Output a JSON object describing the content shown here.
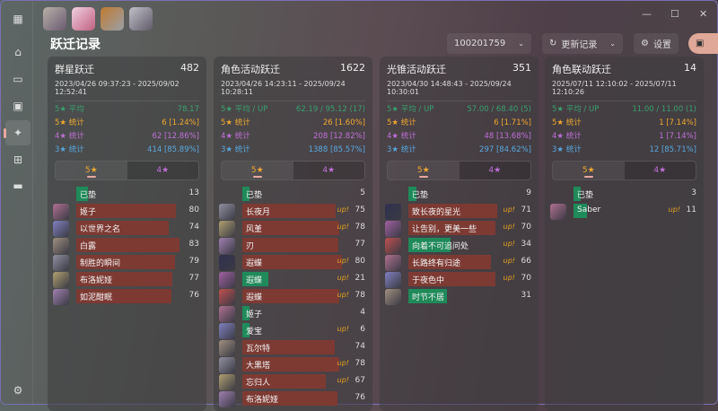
{
  "app": {
    "page_title": "跃迁记录",
    "uid": "100201759",
    "refresh_label": "更新记录",
    "settings_label": "设置"
  },
  "colors": {
    "five": "#f0a830",
    "four": "#c070d8",
    "three": "#5aa8e0",
    "avg": "#3aa070",
    "bar_red": "#7d3a33",
    "bar_green": "#1f8a5a"
  },
  "sidebar": [
    "grid-icon",
    "home-icon",
    "gamepad-icon",
    "image-icon",
    "sparkle-icon",
    "gift-icon",
    "card-icon",
    "settings-icon"
  ],
  "cards": [
    {
      "name": "群星跃迁",
      "total": "482",
      "range": "2023/04/26 09:37:23 - 2025/09/02 12:52:41",
      "avg_label": "5★ 平均",
      "avg": "78.17",
      "s5_label": "5★ 统计",
      "s5": "6 [1.24%]",
      "s4_label": "4★ 统计",
      "s4": "62 [12.86%]",
      "s3_label": "3★ 统计",
      "s3": "414 [85.89%]",
      "tab5": "5★",
      "tab4": "4★",
      "rows": [
        {
          "name": "已垫",
          "n": 13,
          "up": false,
          "g": true,
          "pity": true
        },
        {
          "name": "姬子",
          "n": 80
        },
        {
          "name": "以世界之名",
          "n": 74
        },
        {
          "name": "白露",
          "n": 83
        },
        {
          "name": "制胜的瞬间",
          "n": 79
        },
        {
          "name": "布洛妮娅",
          "n": 77
        },
        {
          "name": "如泥酣眠",
          "n": 76
        }
      ]
    },
    {
      "name": "角色活动跃迁",
      "total": "1622",
      "range": "2023/04/26 14:23:11 - 2025/09/24 10:28:11",
      "avg_label": "5★ 平均 / UP",
      "avg": "62.19 / 95.12 (17)",
      "s5_label": "5★ 统计",
      "s5": "26 [1.60%]",
      "s4_label": "4★ 统计",
      "s4": "208 [12.82%]",
      "s3_label": "3★ 统计",
      "s3": "1388 [85.57%]",
      "tab5": "5★",
      "tab4": "4★",
      "rows": [
        {
          "name": "已垫",
          "n": 5,
          "pity": true
        },
        {
          "name": "长夜月",
          "n": 75,
          "up": true
        },
        {
          "name": "风堇",
          "n": 78,
          "up": true
        },
        {
          "name": "刃",
          "n": 77
        },
        {
          "name": "遐蝶",
          "n": 80,
          "up": true
        },
        {
          "name": "遐蝶",
          "n": 21,
          "up": true
        },
        {
          "name": "遐蝶",
          "n": 78,
          "up": true
        },
        {
          "name": "姬子",
          "n": 4
        },
        {
          "name": "爱宝",
          "n": 6,
          "up": true
        },
        {
          "name": "瓦尔特",
          "n": 74
        },
        {
          "name": "大黑塔",
          "n": 78,
          "up": true
        },
        {
          "name": "忘归人",
          "n": 67,
          "up": true
        },
        {
          "name": "布洛妮娅",
          "n": 76
        }
      ]
    },
    {
      "name": "光锥活动跃迁",
      "total": "351",
      "range": "2023/04/30 14:48:43 - 2025/09/24 10:30:01",
      "avg_label": "5★ 平均 / UP",
      "avg": "57.00 / 68.40 (5)",
      "s5_label": "5★ 统计",
      "s5": "6 [1.71%]",
      "s4_label": "4★ 统计",
      "s4": "48 [13.68%]",
      "s3_label": "3★ 统计",
      "s3": "297 [84.62%]",
      "tab5": "5★",
      "tab4": "4★",
      "rows": [
        {
          "name": "已垫",
          "n": 9,
          "pity": true
        },
        {
          "name": "致长夜的星光",
          "n": 71,
          "up": true
        },
        {
          "name": "让告别，更美一些",
          "n": 70,
          "up": true
        },
        {
          "name": "向着不可追问处",
          "n": 34,
          "up": true
        },
        {
          "name": "长路终有归途",
          "n": 66,
          "up": true
        },
        {
          "name": "于夜色中",
          "n": 70,
          "up": true
        },
        {
          "name": "时节不居",
          "n": 31
        }
      ]
    },
    {
      "name": "角色联动跃迁",
      "total": "14",
      "range": "2025/07/11 12:10:02 - 2025/07/11 12:10:26",
      "avg_label": "5★ 平均 / UP",
      "avg": "11.00 / 11.00 (1)",
      "s5_label": "5★ 统计",
      "s5": "1 [7.14%]",
      "s4_label": "4★ 统计",
      "s4": "1 [7.14%]",
      "s3_label": "3★ 统计",
      "s3": "12 [85.71%]",
      "tab5": "5★",
      "tab4": "4★",
      "rows": [
        {
          "name": "已垫",
          "n": 3,
          "pity": true
        },
        {
          "name": "Saber",
          "n": 11,
          "up": true
        }
      ]
    }
  ],
  "up_label": "up!"
}
